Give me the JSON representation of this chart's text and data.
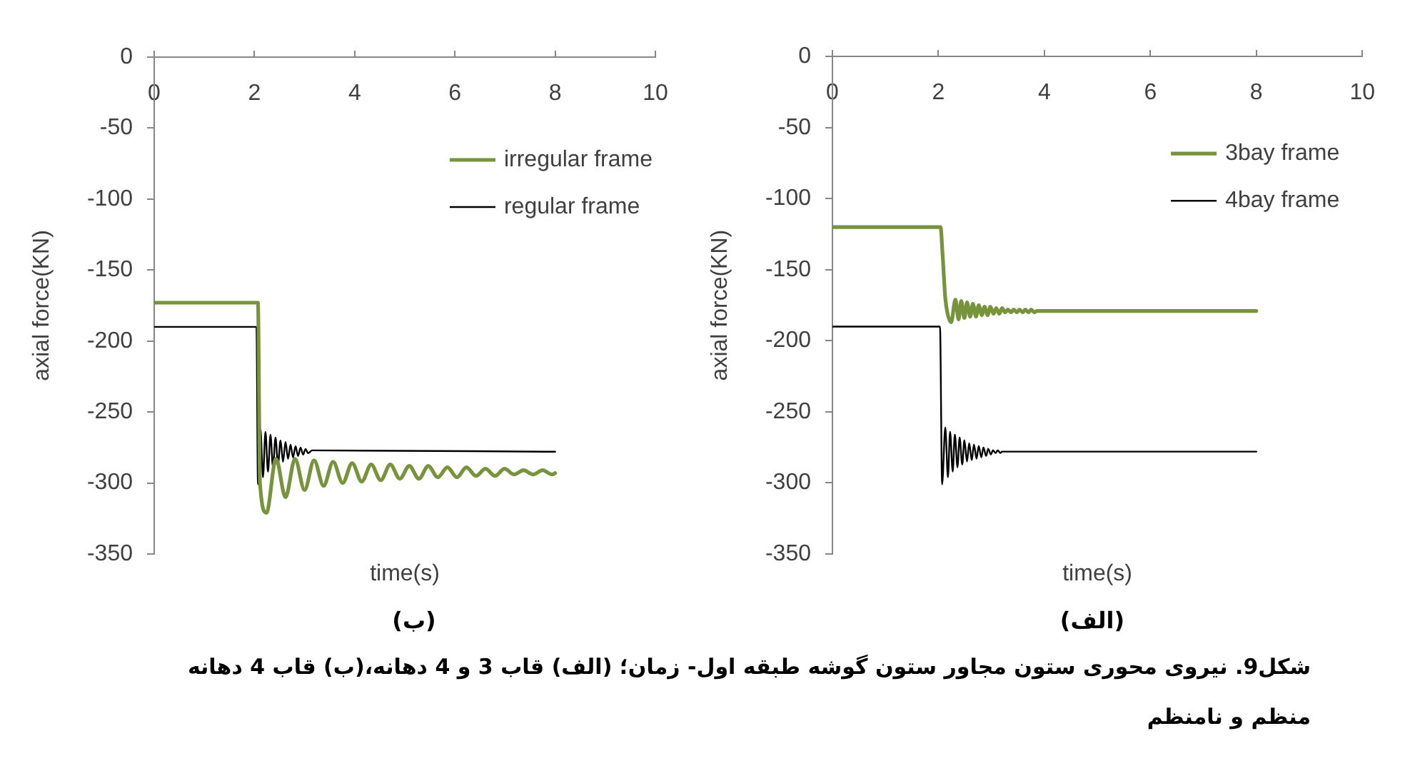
{
  "chart_data": [
    {
      "type": "line",
      "xlabel": "time(s)",
      "ylabel": "axial force(KN)",
      "xlim": [
        0,
        10
      ],
      "ylim": [
        -350,
        0
      ],
      "xticks": [
        0,
        2,
        4,
        6,
        8,
        10
      ],
      "yticks": [
        -350,
        -300,
        -250,
        -200,
        -150,
        -100,
        -50,
        0
      ],
      "legend": "top right",
      "annotations": [
        "(الف)",
        "شکل9. نیروی محوری ستون مجاور ستون گوشه طبقه اول- زمان؛ (الف) قاب 3 و 4 دهانه،(ب) قاب 4 دهانه منظم و نامنظم"
      ],
      "series": [
        {
          "name": "3bay frame",
          "color": "#77933c",
          "x": [
            0,
            2.04,
            2.08,
            2.13,
            2.18,
            2.24,
            2.32,
            2.38,
            2.43,
            2.49,
            2.54,
            2.6,
            2.65,
            2.71,
            2.76,
            2.82,
            2.87,
            2.93,
            2.98,
            3.04,
            3.09,
            3.15,
            3.2,
            3.26,
            3.31,
            3.37,
            3.42,
            3.48,
            3.53,
            3.59,
            3.64,
            3.7,
            3.75,
            3.81,
            3.86,
            8
          ],
          "values": [
            -120,
            -120,
            -140,
            -170,
            -182,
            -187,
            -171,
            -185,
            -172,
            -184,
            -173,
            -183,
            -174,
            -183,
            -175,
            -182,
            -176,
            -182,
            -176,
            -181,
            -177,
            -181,
            -177,
            -180,
            -178,
            -180,
            -178,
            -180,
            -178,
            -180,
            -178,
            -180,
            -178,
            -180,
            -179,
            -179
          ]
        },
        {
          "name": "4bay frame",
          "color": "#000000",
          "x": [
            0,
            2.03,
            2.07,
            2.13,
            2.18,
            2.22,
            2.27,
            2.31,
            2.36,
            2.4,
            2.45,
            2.49,
            2.54,
            2.58,
            2.63,
            2.67,
            2.72,
            2.76,
            2.81,
            2.85,
            2.9,
            2.94,
            2.99,
            3.03,
            3.08,
            3.12,
            3.17,
            3.2,
            8
          ],
          "values": [
            -190,
            -190,
            -301,
            -261,
            -296,
            -264,
            -292,
            -266,
            -289,
            -268,
            -287,
            -270,
            -285,
            -272,
            -284,
            -273,
            -283,
            -274,
            -282,
            -275,
            -281,
            -276,
            -280,
            -277,
            -279,
            -277,
            -279,
            -278,
            -278
          ]
        }
      ]
    },
    {
      "type": "line",
      "xlabel": "time(s)",
      "ylabel": "axial force(KN)",
      "xlim": [
        0,
        10
      ],
      "ylim": [
        -350,
        0
      ],
      "xticks": [
        0,
        2,
        4,
        6,
        8,
        10
      ],
      "yticks": [
        -350,
        -300,
        -250,
        -200,
        -150,
        -100,
        -50,
        0
      ],
      "legend": "top right",
      "annotations": [
        "(ب)"
      ],
      "series": [
        {
          "name": "irregular frame",
          "color": "#77933c",
          "x": [
            0,
            2.07,
            2.11,
            2.24,
            2.43,
            2.62,
            2.81,
            3,
            3.19,
            3.38,
            3.57,
            3.76,
            3.95,
            4.14,
            4.33,
            4.52,
            4.71,
            4.9,
            5.09,
            5.28,
            5.47,
            5.66,
            5.85,
            6.04,
            6.23,
            6.42,
            6.61,
            6.8,
            6.99,
            7.18,
            7.37,
            7.56,
            7.75,
            7.94,
            8
          ],
          "values": [
            -173,
            -173,
            -300,
            -321,
            -283,
            -310,
            -283,
            -305,
            -284,
            -302,
            -285,
            -300,
            -286,
            -299,
            -287,
            -298,
            -287,
            -297,
            -288,
            -297,
            -288,
            -296,
            -289,
            -296,
            -289,
            -295,
            -290,
            -295,
            -290,
            -294,
            -291,
            -294,
            -291,
            -294,
            -293
          ]
        },
        {
          "name": "regular frame",
          "color": "#000000",
          "x": [
            0,
            2.04,
            2.07,
            2.12,
            2.17,
            2.22,
            2.27,
            2.32,
            2.37,
            2.42,
            2.47,
            2.52,
            2.57,
            2.62,
            2.67,
            2.72,
            2.77,
            2.82,
            2.87,
            2.92,
            2.97,
            3.02,
            3.07,
            3.15,
            8
          ],
          "values": [
            -190,
            -190,
            -301,
            -262,
            -296,
            -264,
            -292,
            -266,
            -289,
            -268,
            -287,
            -270,
            -285,
            -271,
            -283,
            -273,
            -282,
            -274,
            -281,
            -275,
            -280,
            -276,
            -279,
            -277,
            -278
          ]
        }
      ]
    }
  ]
}
